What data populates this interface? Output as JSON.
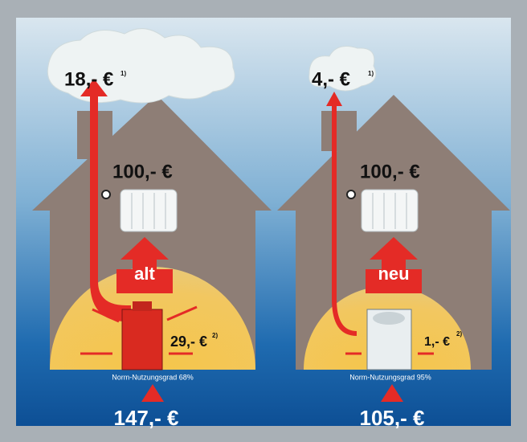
{
  "houses": [
    {
      "chimney_loss": "18,- €",
      "chimney_note": "1)",
      "heating": "100,- €",
      "label": "alt",
      "boiler_loss": "29,- €",
      "boiler_note": "2)",
      "efficiency": "Norm-Nutzungsgrad 68%",
      "total": "147,- €"
    },
    {
      "chimney_loss": "4,- €",
      "chimney_note": "1)",
      "heating": "100,- €",
      "label": "neu",
      "boiler_loss": "1,- €",
      "boiler_note": "2)",
      "efficiency": "Norm-Nutzungsgrad  95%",
      "total": "105,- €"
    }
  ]
}
